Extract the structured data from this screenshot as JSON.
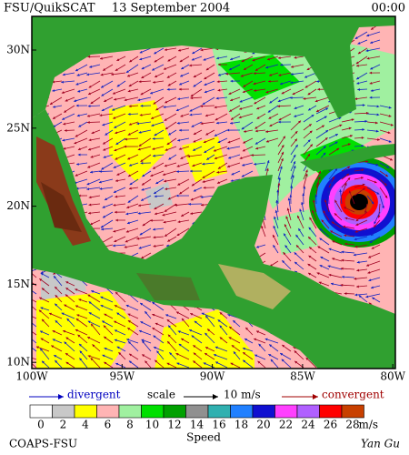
{
  "header": {
    "source": "FSU/QuikSCAT",
    "date": "13 September 2004",
    "time": "00:00"
  },
  "map": {
    "lon_labels": [
      "100W",
      "95W",
      "90W",
      "85W",
      "80W"
    ],
    "lat_labels": [
      "30N",
      "25N",
      "20N",
      "15N",
      "10N"
    ]
  },
  "legend": {
    "divergent": "divergent",
    "scale": "scale",
    "scale_value": "10 m/s",
    "convergent": "convergent"
  },
  "colorbar": {
    "values": [
      0,
      2,
      4,
      6,
      8,
      10,
      12,
      14,
      16,
      18,
      20,
      22,
      24,
      26,
      28
    ],
    "colors": [
      "#ffffff",
      "#c8c8c8",
      "#ffff00",
      "#ffb4b4",
      "#a0f0a0",
      "#00e000",
      "#00a000",
      "#909090",
      "#30b0b0",
      "#2080ff",
      "#1010d0",
      "#ff40ff",
      "#b060ff",
      "#ff0000",
      "#c84000"
    ],
    "unit": "m/s",
    "label": "Speed"
  },
  "footer": {
    "org": "COAPS-FSU",
    "author": "Yan Gu"
  }
}
